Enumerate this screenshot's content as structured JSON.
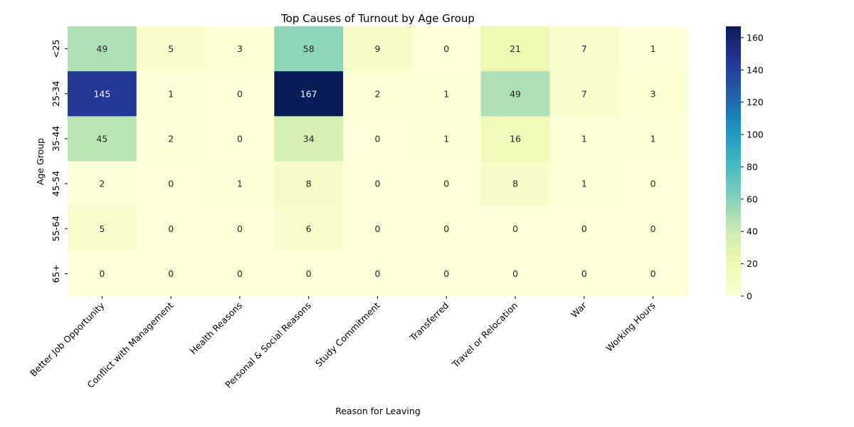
{
  "chart_data": {
    "type": "heatmap",
    "title": "Top Causes of Turnout by Age Group",
    "xlabel": "Reason for Leaving",
    "ylabel": "Age Group",
    "x_categories": [
      "Better Job Opportunity",
      "Conflict with Management",
      "Health Reasons",
      "Personal & Social Reasons",
      "Study Commitment",
      "Transferred",
      "Travel or Relocation",
      "War",
      "Working Hours"
    ],
    "y_categories": [
      "<25",
      "25-34",
      "35-44",
      "45-54",
      "55-64",
      "65+"
    ],
    "values": [
      [
        49,
        5,
        3,
        58,
        9,
        0,
        21,
        7,
        1
      ],
      [
        145,
        1,
        0,
        167,
        2,
        1,
        49,
        7,
        3
      ],
      [
        45,
        2,
        0,
        34,
        0,
        1,
        16,
        1,
        1
      ],
      [
        2,
        0,
        1,
        8,
        0,
        0,
        8,
        1,
        0
      ],
      [
        5,
        0,
        0,
        6,
        0,
        0,
        0,
        0,
        0
      ],
      [
        0,
        0,
        0,
        0,
        0,
        0,
        0,
        0,
        0
      ]
    ],
    "colormap": "YlGnBu",
    "colorbar": {
      "range": [
        0,
        167
      ],
      "ticks": [
        0,
        20,
        40,
        60,
        80,
        100,
        120,
        140,
        160
      ]
    },
    "annotations": true,
    "grid": false
  }
}
